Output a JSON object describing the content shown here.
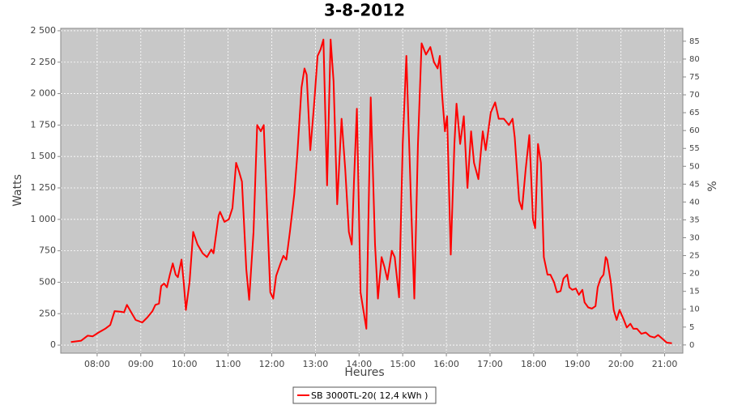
{
  "chart_data": {
    "type": "line",
    "title": "3-8-2012",
    "xlabel": "Heures",
    "ylabel": "Watts",
    "y2label": "%",
    "x": [
      444,
      458,
      467,
      474,
      482,
      491,
      498,
      504,
      513,
      517,
      521,
      527,
      533,
      542,
      549,
      556,
      560,
      565,
      568,
      572,
      576,
      580,
      584,
      588,
      591,
      596,
      599,
      602,
      607,
      612,
      618,
      625,
      631,
      637,
      640,
      647,
      649,
      655,
      661,
      666,
      671,
      675,
      679,
      685,
      689,
      695,
      700,
      705,
      709,
      714,
      718,
      722,
      726,
      732,
      736,
      740,
      745,
      751,
      755,
      761,
      765,
      768,
      773,
      778,
      783,
      787,
      791,
      796,
      801,
      805,
      810,
      816,
      821,
      826,
      830,
      833,
      837,
      842,
      850,
      856,
      862,
      866,
      871,
      875,
      879,
      885,
      889,
      895,
      900,
      905,
      911,
      916,
      921,
      926,
      932,
      938,
      943,
      948,
      951,
      954,
      958,
      961,
      966,
      971,
      974,
      979,
      984,
      989,
      994,
      998,
      1004,
      1010,
      1014,
      1021,
      1027,
      1032,
      1039,
      1046,
      1051,
      1054,
      1060,
      1064,
      1069,
      1074,
      1079,
      1082,
      1086,
      1090,
      1094,
      1099,
      1103,
      1108,
      1112,
      1117,
      1121,
      1126,
      1129,
      1133,
      1138,
      1142,
      1147,
      1150,
      1155,
      1160,
      1165,
      1168,
      1172,
      1176,
      1179,
      1181,
      1186,
      1190,
      1194,
      1198,
      1204,
      1208,
      1213,
      1217,
      1222,
      1228,
      1234,
      1240,
      1246,
      1251,
      1257,
      1263,
      1270
    ],
    "series": [
      {
        "name": "SB 3000TL-20( 12,4 kWh )",
        "color": "#ff0000",
        "values": [
          25,
          35,
          75,
          70,
          100,
          130,
          160,
          270,
          265,
          260,
          320,
          260,
          200,
          180,
          220,
          270,
          320,
          330,
          470,
          490,
          460,
          560,
          650,
          560,
          540,
          680,
          500,
          280,
          500,
          900,
          800,
          730,
          700,
          760,
          730,
          1030,
          1060,
          980,
          1000,
          1090,
          1450,
          1380,
          1300,
          600,
          360,
          900,
          1750,
          1700,
          1750,
          1000,
          420,
          370,
          550,
          650,
          710,
          680,
          900,
          1200,
          1500,
          2050,
          2200,
          2150,
          1550,
          1900,
          2300,
          2350,
          2430,
          1270,
          2430,
          2100,
          1120,
          1800,
          1400,
          900,
          800,
          1300,
          1880,
          420,
          130,
          1970,
          800,
          370,
          700,
          620,
          520,
          750,
          700,
          380,
          1600,
          2300,
          1200,
          370,
          1600,
          2400,
          2310,
          2370,
          2250,
          2200,
          2300,
          2000,
          1700,
          1820,
          720,
          1600,
          1920,
          1600,
          1820,
          1250,
          1700,
          1450,
          1320,
          1700,
          1550,
          1850,
          1930,
          1800,
          1800,
          1750,
          1800,
          1650,
          1150,
          1080,
          1400,
          1670,
          1000,
          930,
          1600,
          1450,
          700,
          560,
          560,
          500,
          420,
          430,
          530,
          560,
          460,
          440,
          450,
          400,
          440,
          340,
          300,
          290,
          310,
          460,
          530,
          560,
          700,
          680,
          500,
          280,
          200,
          280,
          200,
          140,
          170,
          130,
          130,
          90,
          100,
          70,
          60,
          80,
          50,
          20,
          15
        ]
      }
    ],
    "xlim": [
      430,
      1285
    ],
    "xticks": [
      {
        "value": 480,
        "label": "08:00"
      },
      {
        "value": 540,
        "label": "09:00"
      },
      {
        "value": 600,
        "label": "10:00"
      },
      {
        "value": 660,
        "label": "11:00"
      },
      {
        "value": 720,
        "label": "12:00"
      },
      {
        "value": 780,
        "label": "13:00"
      },
      {
        "value": 840,
        "label": "14:00"
      },
      {
        "value": 900,
        "label": "15:00"
      },
      {
        "value": 960,
        "label": "16:00"
      },
      {
        "value": 1020,
        "label": "17:00"
      },
      {
        "value": 1080,
        "label": "18:00"
      },
      {
        "value": 1140,
        "label": "19:00"
      },
      {
        "value": 1200,
        "label": "20:00"
      },
      {
        "value": 1260,
        "label": "21:00"
      }
    ],
    "ylim": [
      -64,
      2519
    ],
    "yticks": [
      0,
      250,
      500,
      750,
      {
        "value": 1000,
        "label": "1 000"
      },
      {
        "value": 1250,
        "label": "1 250"
      },
      {
        "value": 1500,
        "label": "1 500"
      },
      {
        "value": 1750,
        "label": "1 750"
      },
      {
        "value": 2000,
        "label": "2 000"
      },
      {
        "value": 2250,
        "label": "2 250"
      },
      {
        "value": 2500,
        "label": "2 500"
      }
    ],
    "y2lim": [
      -2.3,
      88.6
    ],
    "y2ticks": [
      0,
      5,
      10,
      15,
      20,
      25,
      30,
      35,
      40,
      45,
      50,
      55,
      60,
      65,
      70,
      75,
      80,
      85
    ],
    "grid": true,
    "legend": "bottom"
  }
}
